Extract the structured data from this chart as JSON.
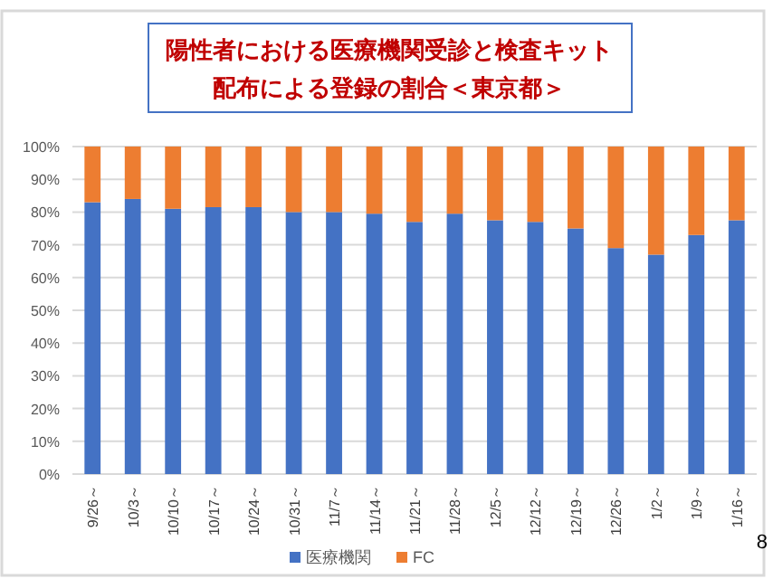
{
  "chart_data": {
    "type": "bar",
    "stacked": true,
    "title": "陽性者における医療機関受診と検査キット配布による登録の割合＜東京都＞",
    "categories": [
      "9/26～",
      "10/3～",
      "10/10～",
      "10/17～",
      "10/24～",
      "10/31～",
      "11/7～",
      "11/14～",
      "11/21～",
      "11/28～",
      "12/5～",
      "12/12～",
      "12/19～",
      "12/26～",
      "1/2～",
      "1/9～",
      "1/16～"
    ],
    "series": [
      {
        "name": "医療機関",
        "color": "#4472c4",
        "values": [
          83,
          84,
          81,
          81.5,
          81.5,
          80,
          80,
          79.5,
          77,
          79.5,
          77.5,
          77,
          75,
          69,
          67,
          73,
          77.5
        ]
      },
      {
        "name": "FC",
        "color": "#ed7d31",
        "values": [
          17,
          16,
          19,
          18.5,
          18.5,
          20,
          20,
          20.5,
          23,
          20.5,
          22.5,
          23,
          25,
          31,
          33,
          27,
          22.5
        ]
      }
    ],
    "ylim": [
      0,
      100
    ],
    "yticks": [
      {
        "value": 0,
        "label": "0%"
      },
      {
        "value": 10,
        "label": "10%"
      },
      {
        "value": 20,
        "label": "20%"
      },
      {
        "value": 30,
        "label": "30%"
      },
      {
        "value": 40,
        "label": "40%"
      },
      {
        "value": 50,
        "label": "50%"
      },
      {
        "value": 60,
        "label": "60%"
      },
      {
        "value": 70,
        "label": "70%"
      },
      {
        "value": 80,
        "label": "80%"
      },
      {
        "value": 90,
        "label": "90%"
      },
      {
        "value": 100,
        "label": "100%"
      }
    ],
    "grid": "y",
    "legend": "bottom",
    "annotations": [
      "8"
    ]
  }
}
